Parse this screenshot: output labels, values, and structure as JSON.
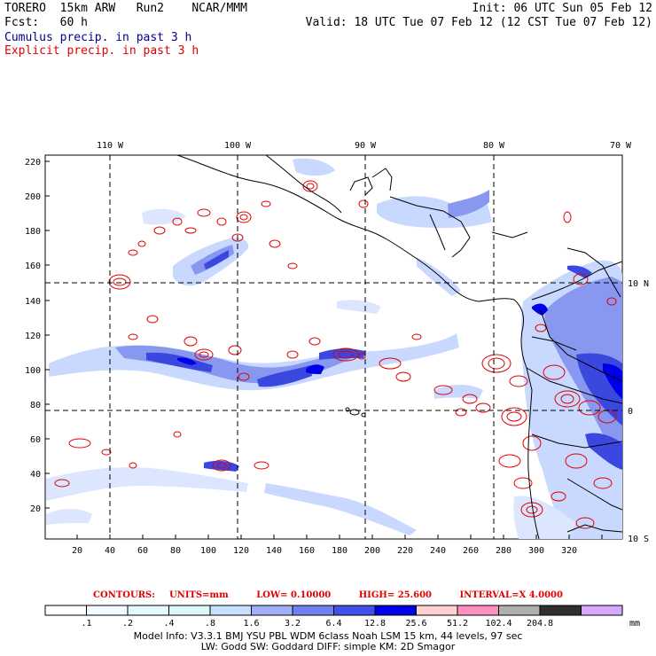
{
  "header": {
    "line1_left": "TORERO  15km ARW   Run2    NCAR/MMM",
    "line1_right": "Init: 06 UTC Sun 05 Feb 12",
    "line2_left": "Fcst:   60 h",
    "line2_right": "Valid: 18 UTC Tue 07 Feb 12 (12 CST Tue 07 Feb 12)",
    "legend_cumulus": "Cumulus precip. in past 3 h",
    "legend_explicit": "Explicit precip. in past 3 h"
  },
  "map": {
    "top_longitude_labels": [
      "110 W",
      "100 W",
      "90 W",
      "80 W",
      "70 W"
    ],
    "left_y_labels": [
      "220",
      "200",
      "180",
      "160",
      "140",
      "120",
      "100",
      "80",
      "60",
      "40",
      "20"
    ],
    "bottom_x_labels": [
      "20",
      "40",
      "60",
      "80",
      "100",
      "120",
      "140",
      "160",
      "180",
      "200",
      "220",
      "240",
      "260",
      "280",
      "300",
      "320"
    ],
    "right_latitude_labels": [
      "10 N",
      "0",
      "10 S"
    ],
    "colors": {
      "cumulus_light": "#c8d8ff",
      "cumulus_mid": "#8898f0",
      "cumulus_dark": "#3a48e0",
      "cumulus_deep": "#0000e8",
      "explicit_contour": "#e00000",
      "coastline": "#000000"
    }
  },
  "contours_info": {
    "label": "CONTOURS:",
    "units": "UNITS=mm",
    "low": "LOW= 0.10000",
    "high": "HIGH= 25.600",
    "interval": "INTERVAL=X 4.0000"
  },
  "color_scale": {
    "values": [
      ".1",
      ".2",
      ".4",
      ".8",
      "1.6",
      "3.2",
      "6.4",
      "12.8",
      "25.6",
      "51.2",
      "102.4",
      "204.8"
    ],
    "unit": "mm",
    "colors": [
      "#ffffff",
      "#f2fbff",
      "#e6f8ff",
      "#dcf8f8",
      "#c8e0ff",
      "#a0b0f8",
      "#7080f0",
      "#4050e8",
      "#0000e8",
      "#ffd0d0",
      "#ff90c0",
      "#b0b0b0",
      "#303030",
      "#d8a8ff"
    ]
  },
  "footer": {
    "line1": "Model Info: V3.3.1   BMJ     YSU PBL   WDM 6class   Noah LSM   15 km,    44 levels,    97 sec",
    "line2": "LW: Godd SW: Goddard DIFF: simple KM: 2D Smagor"
  }
}
